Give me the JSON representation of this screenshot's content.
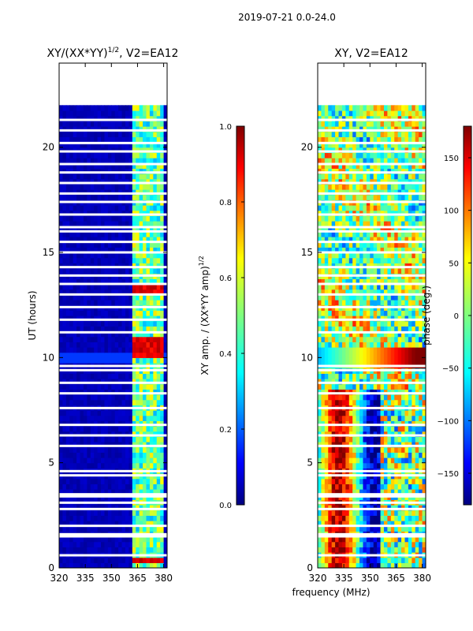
{
  "figure_title": "2019-07-21 0.0-24.0",
  "shared_xlabel": "frequency (MHz)",
  "colors": {
    "jet": [
      "#00007f",
      "#0000ff",
      "#007fff",
      "#00ffff",
      "#7fff7f",
      "#ffff00",
      "#ff7f00",
      "#ff0000",
      "#7f0000"
    ],
    "background": "#ffffff",
    "axis": "#000000"
  },
  "chart_data": [
    {
      "type": "heatmap",
      "title": "XY/(XX*YY)",
      "title_sup": "1/2",
      "title_suffix": ", V2=EA12",
      "xlabel": "",
      "ylabel": "UT (hours)",
      "xlim": [
        320,
        382
      ],
      "ylim": [
        0,
        24
      ],
      "xticks": [
        320,
        335,
        350,
        365,
        380
      ],
      "yticks": [
        0,
        5,
        10,
        15,
        20
      ],
      "data_extent_hours": [
        0,
        22
      ],
      "colorbar": {
        "label": "XY amp. / (XX*YY amp)",
        "label_sup": "1/2",
        "range": [
          0.0,
          1.0
        ],
        "ticks": [
          "0.0",
          "0.2",
          "0.4",
          "0.6",
          "0.8",
          "1.0"
        ]
      },
      "bright_band_freqs_mhz": [
        363,
        366,
        369,
        372,
        376,
        379
      ],
      "strong_rows_hours": [
        0.4,
        10.3,
        10.8,
        13.3
      ],
      "gap_rows_hours": [
        0.6,
        1.5,
        1.6,
        2.0,
        2.8,
        3.1,
        3.4,
        3.5,
        4.4,
        4.6,
        5.8,
        6.3,
        6.8,
        7.6,
        8.3,
        8.8,
        9.4,
        9.6,
        11.2,
        11.8,
        12.4,
        13.0,
        13.5,
        13.9,
        14.3,
        15.0,
        15.5,
        16.0,
        16.2,
        16.8,
        17.4,
        17.8,
        18.3,
        18.8,
        19.2,
        19.8,
        20.2,
        20.8,
        21.3
      ]
    },
    {
      "type": "heatmap",
      "title": "XY, V2=EA12",
      "xlabel": "frequency (MHz)",
      "ylabel": "",
      "xlim": [
        320,
        382
      ],
      "ylim": [
        0,
        24
      ],
      "xticks": [
        320,
        335,
        350,
        365,
        380
      ],
      "yticks": [
        0,
        5,
        10,
        15,
        20
      ],
      "data_extent_hours": [
        0,
        22
      ],
      "colorbar": {
        "label": "phase (deg.)",
        "range": [
          -180,
          180
        ],
        "ticks": [
          "150",
          "100",
          "50",
          "0",
          "−50",
          "−100",
          "−150"
        ]
      },
      "gap_rows_hours": [
        0.6,
        1.5,
        1.6,
        2.0,
        2.8,
        3.1,
        3.4,
        3.5,
        4.4,
        4.6,
        5.8,
        6.3,
        6.8,
        7.6,
        8.3,
        8.8,
        9.4,
        9.6,
        11.2,
        11.8,
        12.4,
        13.0,
        13.5,
        13.9,
        14.3,
        15.0,
        15.5,
        16.0,
        16.2,
        16.8,
        17.4,
        17.8,
        18.3,
        18.8,
        19.2,
        19.8,
        20.2,
        20.8,
        21.3
      ]
    }
  ]
}
